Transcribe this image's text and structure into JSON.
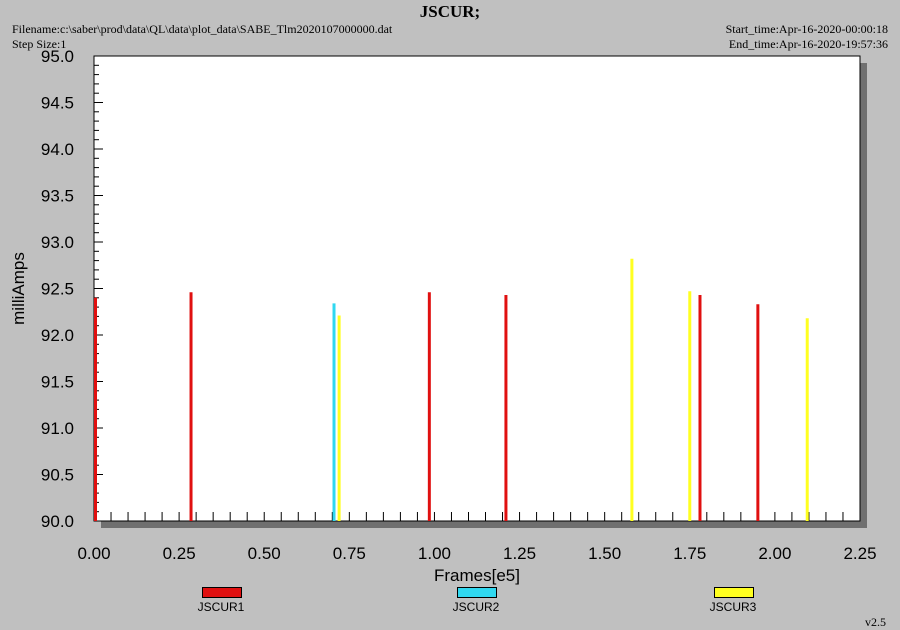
{
  "header": {
    "title": "JSCUR;",
    "filename": "Filename:c:\\saber\\prod\\data\\QL\\data\\plot_data\\SABE_Tlm2020107000000.dat",
    "step_size": "Step Size:1",
    "start_time": "Start_time:Apr-16-2020-00:00:18",
    "end_time": "End_time:Apr-16-2020-19:57:36"
  },
  "footer": {
    "version": "v2.5"
  },
  "chart_data": {
    "type": "bar",
    "xlabel": "Frames[e5]",
    "ylabel": "milliAmps",
    "xlim": [
      0.0,
      2.25
    ],
    "ylim": [
      90.0,
      95.0
    ],
    "xticks": [
      "0.00",
      "0.25",
      "0.50",
      "0.75",
      "1.00",
      "1.25",
      "1.50",
      "1.75",
      "2.00",
      "2.25"
    ],
    "yticks": [
      "90.0",
      "90.5",
      "91.0",
      "91.5",
      "92.0",
      "92.5",
      "93.0",
      "93.5",
      "94.0",
      "94.5",
      "95.0"
    ],
    "legend_placement": "bottom",
    "series": [
      {
        "name": "JSCUR1",
        "color": "#e01010",
        "points": [
          {
            "x": 0.0,
            "y": 92.4
          },
          {
            "x": 0.285,
            "y": 92.46
          },
          {
            "x": 0.985,
            "y": 92.46
          },
          {
            "x": 1.21,
            "y": 92.43
          },
          {
            "x": 1.78,
            "y": 92.43
          },
          {
            "x": 1.95,
            "y": 92.33
          }
        ]
      },
      {
        "name": "JSCUR2",
        "color": "#30d8f0",
        "points": [
          {
            "x": 0.705,
            "y": 92.34
          }
        ]
      },
      {
        "name": "JSCUR3",
        "color": "#ffff20",
        "points": [
          {
            "x": 0.72,
            "y": 92.21
          },
          {
            "x": 1.58,
            "y": 92.82
          },
          {
            "x": 1.75,
            "y": 92.47
          },
          {
            "x": 2.095,
            "y": 92.18
          }
        ]
      }
    ]
  }
}
